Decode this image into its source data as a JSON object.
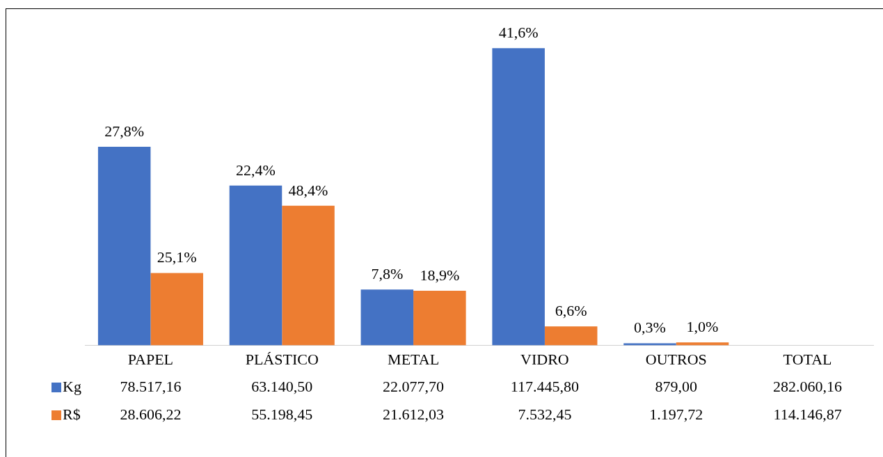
{
  "chart_data": {
    "type": "bar",
    "categories": [
      "PAPEL",
      "PLÁSTICO",
      "METAL",
      "VIDRO",
      "OUTROS",
      "TOTAL"
    ],
    "series": [
      {
        "name": "Kg",
        "color": "#4472c4",
        "values": [
          78517.16,
          63140.5,
          22077.7,
          117445.8,
          879.0,
          null
        ],
        "value_labels": [
          "78.517,16",
          "63.140,50",
          "22.077,70",
          "117.445,80",
          "879,00",
          "282.060,16"
        ]
      },
      {
        "name": "R$",
        "color": "#ed7d31",
        "values": [
          28606.22,
          55198.45,
          21612.03,
          7532.45,
          1197.72,
          null
        ],
        "value_labels": [
          "28.606,22",
          "55.198,45",
          "21.612,03",
          "7.532,45",
          "1.197,72",
          "114.146,87"
        ]
      }
    ],
    "legend": "bottom left",
    "annotations": [
      {
        "text": "27,8%",
        "x": "PAPEL",
        "y": 78517.16
      },
      {
        "text": "22,4%",
        "x": "PLÁSTICO",
        "y": 63140.5
      },
      {
        "text": "7,8%",
        "x": "METAL",
        "y": 22077.7
      },
      {
        "text": "41,6%",
        "x": "VIDRO",
        "y": 117445.8
      },
      {
        "text": "0,3%",
        "x": "OUTROS",
        "y": 879.0
      },
      {
        "text": "25,1%",
        "x": "PAPEL",
        "y": 28606.22
      },
      {
        "text": "48,4%",
        "x": "PLÁSTICO",
        "y": 55198.45
      },
      {
        "text": "18,9%",
        "x": "METAL",
        "y": 21612.03
      },
      {
        "text": "6,6%",
        "x": "VIDRO",
        "y": 7532.45
      },
      {
        "text": "1,0%",
        "x": "OUTROS",
        "y": 1197.72
      }
    ]
  }
}
